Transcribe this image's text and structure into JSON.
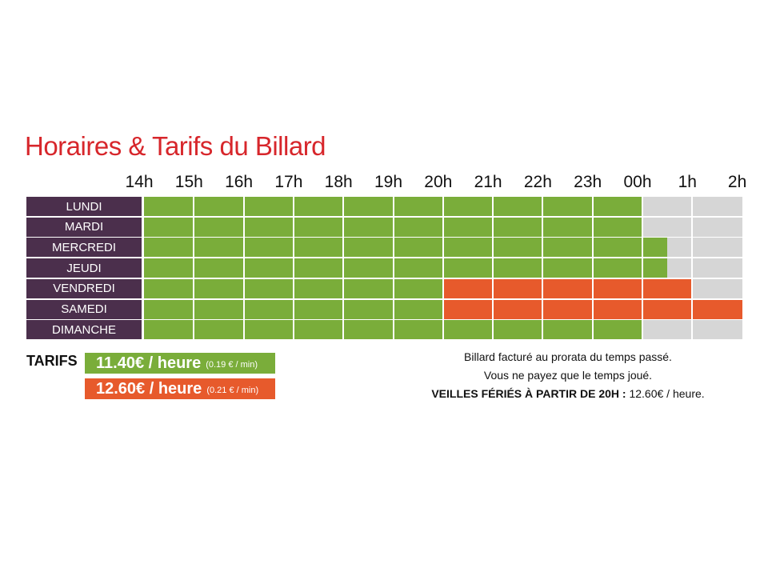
{
  "title": "Horaires & Tarifs du Billard",
  "hours": [
    "14h",
    "15h",
    "16h",
    "17h",
    "18h",
    "19h",
    "20h",
    "21h",
    "22h",
    "23h",
    "00h",
    "1h",
    "2h"
  ],
  "days": [
    {
      "label": "LUNDI",
      "segments": [
        {
          "from": 0,
          "to": 10,
          "rate": "green"
        },
        {
          "from": 10,
          "to": 12,
          "rate": "closed"
        }
      ]
    },
    {
      "label": "MARDI",
      "segments": [
        {
          "from": 0,
          "to": 10,
          "rate": "green"
        },
        {
          "from": 10,
          "to": 12,
          "rate": "closed"
        }
      ]
    },
    {
      "label": "MERCREDI",
      "segments": [
        {
          "from": 0,
          "to": 10.5,
          "rate": "green"
        },
        {
          "from": 10.5,
          "to": 12,
          "rate": "closed"
        }
      ]
    },
    {
      "label": "JEUDI",
      "segments": [
        {
          "from": 0,
          "to": 10.5,
          "rate": "green"
        },
        {
          "from": 10.5,
          "to": 12,
          "rate": "closed"
        }
      ]
    },
    {
      "label": "VENDREDI",
      "segments": [
        {
          "from": 0,
          "to": 6,
          "rate": "green"
        },
        {
          "from": 6,
          "to": 11,
          "rate": "orange"
        },
        {
          "from": 11,
          "to": 12,
          "rate": "closed"
        }
      ]
    },
    {
      "label": "SAMEDI",
      "segments": [
        {
          "from": 0,
          "to": 6,
          "rate": "green"
        },
        {
          "from": 6,
          "to": 12,
          "rate": "orange"
        }
      ]
    },
    {
      "label": "DIMANCHE",
      "segments": [
        {
          "from": 0,
          "to": 10,
          "rate": "green"
        },
        {
          "from": 10,
          "to": 12,
          "rate": "closed"
        }
      ]
    }
  ],
  "tarifs": {
    "label": "TARIFS",
    "green": {
      "price": "11.40€ / heure",
      "per_min": "(0.19 € / min)",
      "color": "#7aad3a"
    },
    "orange": {
      "price": "12.60€ / heure",
      "per_min": "(0.21 € / min)",
      "color": "#e75a2c"
    }
  },
  "notes": {
    "line1": "Billard facturé au prorata du temps passé.",
    "line2": "Vous ne payez que le temps joué.",
    "line3_bold": "VEILLES FÉRIÉS À PARTIR DE 20H :",
    "line3_rest": " 12.60€ / heure."
  },
  "colors": {
    "title": "#d7262b",
    "day_bg": "#4b2f4c",
    "green": "#7aad3a",
    "orange": "#e75a2c",
    "closed": "#d6d6d6"
  }
}
